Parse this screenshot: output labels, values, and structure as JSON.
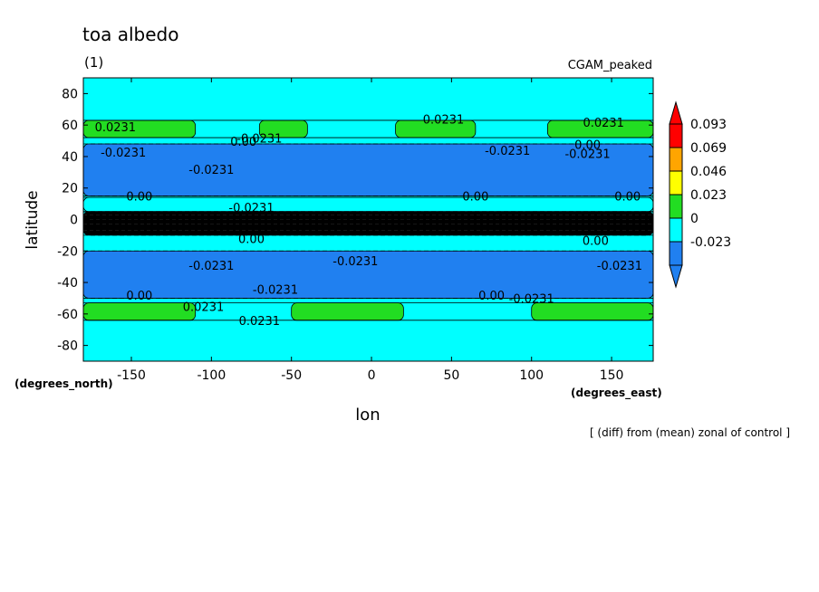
{
  "chart_data": {
    "type": "heatmap",
    "title": "toa albedo",
    "subtitle": "(1)",
    "experiment": "CGAM_peaked",
    "xlabel": "lon",
    "ylabel": "latitude",
    "x_units": "(degrees_east)",
    "y_units": "(degrees_north)",
    "footnote": "[ (diff) from (mean) zonal of control ]",
    "xlim": [
      -180,
      176
    ],
    "ylim": [
      -90,
      90
    ],
    "x_ticks": [
      "-150",
      "-100",
      "-50",
      "0",
      "50",
      "100",
      "150"
    ],
    "x_tick_values": [
      -150,
      -100,
      -50,
      0,
      50,
      100,
      150
    ],
    "y_ticks": [
      "80",
      "60",
      "40",
      "20",
      "0",
      "-20",
      "-40",
      "-60",
      "-80"
    ],
    "y_tick_values": [
      80,
      60,
      40,
      20,
      0,
      -20,
      -40,
      -60,
      -80
    ],
    "colorbar": {
      "labels": [
        "0.093",
        "0.069",
        "0.046",
        "0.023",
        "0",
        "-0.023"
      ],
      "levels": [
        -0.046,
        -0.023,
        0,
        0.023,
        0.046,
        0.069,
        0.093
      ],
      "colors": [
        "#2080f0",
        "#00ffff",
        "#22dd22",
        "#ffff00",
        "#ffa500",
        "#ff0000"
      ],
      "below_color": "#2080f0",
      "above_color": "#ff0000"
    },
    "background_color": "#00ffff",
    "zonal_bands": [
      {
        "lat": [
          52,
          63
        ],
        "value": 0.03,
        "color": "#22dd22",
        "gaps": [
          [
            -110,
            -70
          ],
          [
            -40,
            15
          ],
          [
            65,
            110
          ]
        ]
      },
      {
        "lat": [
          15,
          48
        ],
        "value": -0.03,
        "color": "#2080f0",
        "gaps": []
      },
      {
        "lat": [
          5,
          14
        ],
        "value": 0.01,
        "color": "#00ffff",
        "gaps": []
      },
      {
        "lat": [
          -10,
          5
        ],
        "value": -0.05,
        "color": "#000000",
        "gaps": []
      },
      {
        "lat": [
          -50,
          -20
        ],
        "value": -0.03,
        "color": "#2080f0",
        "gaps": []
      },
      {
        "lat": [
          -64,
          -53
        ],
        "value": 0.03,
        "color": "#22dd22",
        "gaps": [
          [
            -110,
            -50
          ],
          [
            20,
            100
          ]
        ]
      }
    ],
    "contour_labels": [
      {
        "text": "0.0231",
        "lon": -160,
        "lat": 58
      },
      {
        "text": "0.00",
        "lon": -80,
        "lat": 49
      },
      {
        "text": "-0.0231",
        "lon": -70,
        "lat": 51
      },
      {
        "text": "0.0231",
        "lon": 45,
        "lat": 63
      },
      {
        "text": "0.0231",
        "lon": 145,
        "lat": 61
      },
      {
        "text": "0.00",
        "lon": 135,
        "lat": 47
      },
      {
        "text": "-0.0231",
        "lon": 135,
        "lat": 41
      },
      {
        "text": "-0.0231",
        "lon": -155,
        "lat": 42
      },
      {
        "text": "-0.0231",
        "lon": -100,
        "lat": 31
      },
      {
        "text": "-0.0231",
        "lon": 85,
        "lat": 43
      },
      {
        "text": "0.00",
        "lon": -145,
        "lat": 14
      },
      {
        "text": "0.00",
        "lon": 65,
        "lat": 14
      },
      {
        "text": "0.00",
        "lon": 160,
        "lat": 14
      },
      {
        "text": "-0.0231",
        "lon": -75,
        "lat": 7
      },
      {
        "text": "-0.0231",
        "lon": -50,
        "lat": -8
      },
      {
        "text": "0.00",
        "lon": -75,
        "lat": -13
      },
      {
        "text": "0.00",
        "lon": 140,
        "lat": -14
      },
      {
        "text": "-0.0231",
        "lon": -100,
        "lat": -30
      },
      {
        "text": "-0.0231",
        "lon": -10,
        "lat": -27
      },
      {
        "text": "-0.0231",
        "lon": 155,
        "lat": -30
      },
      {
        "text": "-0.0231",
        "lon": -60,
        "lat": -45
      },
      {
        "text": "0.00",
        "lon": -145,
        "lat": -49
      },
      {
        "text": "0.00",
        "lon": 75,
        "lat": -49
      },
      {
        "text": "-0.0231",
        "lon": 100,
        "lat": -51
      },
      {
        "text": "0.0231",
        "lon": -105,
        "lat": -56
      },
      {
        "text": "0.0231",
        "lon": -70,
        "lat": -65
      }
    ]
  }
}
